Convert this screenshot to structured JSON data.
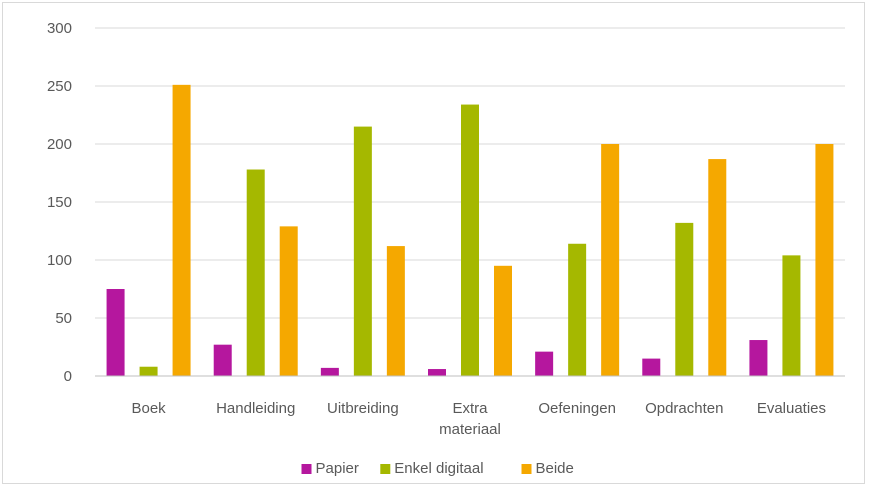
{
  "chart_data": {
    "type": "bar",
    "categories": [
      "Boek",
      "Handleiding",
      "Uitbreiding",
      "Extra materiaal",
      "Oefeningen",
      "Opdrachten",
      "Evaluaties"
    ],
    "category_lines": [
      [
        "Boek"
      ],
      [
        "Handleiding"
      ],
      [
        "Uitbreiding"
      ],
      [
        "Extra",
        "materiaal"
      ],
      [
        "Oefeningen"
      ],
      [
        "Opdrachten"
      ],
      [
        "Evaluaties"
      ]
    ],
    "series": [
      {
        "name": "Papier",
        "color": "#b5179e",
        "values": [
          75,
          27,
          7,
          6,
          21,
          15,
          31
        ]
      },
      {
        "name": "Enkel digitaal",
        "color": "#a5b800",
        "values": [
          8,
          178,
          215,
          234,
          114,
          132,
          104
        ]
      },
      {
        "name": "Beide",
        "color": "#f5a800",
        "values": [
          251,
          129,
          112,
          95,
          200,
          187,
          200
        ]
      }
    ],
    "ylim": [
      0,
      300
    ],
    "yticks": [
      0,
      50,
      100,
      150,
      200,
      250,
      300
    ],
    "grid": true,
    "legend_position": "bottom",
    "title": "",
    "xlabel": "",
    "ylabel": ""
  }
}
